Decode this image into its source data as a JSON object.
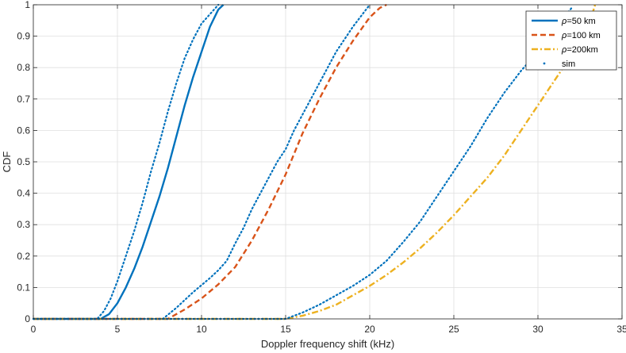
{
  "chart_data": {
    "type": "line",
    "title": "",
    "xlabel": "Doppler frequency shift (kHz)",
    "ylabel": "CDF",
    "xlim": [
      0,
      35
    ],
    "ylim": [
      0,
      1
    ],
    "xticks": [
      0,
      5,
      10,
      15,
      20,
      25,
      30,
      35
    ],
    "yticks": [
      0,
      0.1,
      0.2,
      0.3,
      0.4,
      0.5,
      0.6,
      0.7,
      0.8,
      0.9,
      1
    ],
    "x_tick_labels": [
      "0",
      "5",
      "10",
      "15",
      "20",
      "25",
      "30",
      "35"
    ],
    "y_tick_labels": [
      "0",
      "0.1",
      "0.2",
      "0.3",
      "0.4",
      "0.5",
      "0.6",
      "0.7",
      "0.8",
      "0.9",
      "1"
    ],
    "grid": true,
    "legend_position": "top-right",
    "series": [
      {
        "name_prefix": "ρ",
        "name_suffix": "=50 km",
        "style": "solid",
        "color": "#0072BD",
        "x": [
          0,
          4.0,
          4.5,
          5.0,
          5.5,
          6.0,
          6.5,
          7.0,
          7.5,
          8.0,
          8.5,
          9.0,
          9.5,
          10.0,
          10.5,
          11.0,
          11.3
        ],
        "y": [
          0,
          0,
          0.015,
          0.05,
          0.1,
          0.16,
          0.23,
          0.31,
          0.39,
          0.48,
          0.58,
          0.68,
          0.77,
          0.85,
          0.93,
          0.985,
          1.0
        ]
      },
      {
        "name_prefix": "ρ",
        "name_suffix": "=100 km",
        "style": "dashed",
        "color": "#D95319",
        "x": [
          0,
          8.0,
          9.0,
          10.0,
          11.0,
          12.0,
          13.0,
          14.0,
          15.0,
          16.0,
          17.0,
          18.0,
          19.0,
          20.0,
          20.6,
          21.0
        ],
        "y": [
          0,
          0,
          0.03,
          0.065,
          0.11,
          0.165,
          0.25,
          0.35,
          0.46,
          0.59,
          0.7,
          0.8,
          0.885,
          0.96,
          0.99,
          1.0
        ]
      },
      {
        "name_prefix": "ρ",
        "name_suffix": "=200km",
        "style": "dashdot",
        "color": "#EDB120",
        "x": [
          0,
          15.0,
          16.0,
          17.0,
          18.0,
          19.0,
          20.0,
          21.0,
          22.0,
          23.0,
          24.0,
          25.0,
          26.0,
          27.0,
          28.0,
          29.0,
          30.0,
          31.0,
          32.0,
          33.0,
          33.4
        ],
        "y": [
          0,
          0,
          0.01,
          0.025,
          0.045,
          0.075,
          0.105,
          0.14,
          0.18,
          0.225,
          0.275,
          0.33,
          0.39,
          0.45,
          0.52,
          0.6,
          0.68,
          0.76,
          0.84,
          0.93,
          1.0
        ]
      },
      {
        "name": "sim",
        "style": "dotted",
        "color": "#0072BD",
        "segments": [
          {
            "x": [
              0,
              3.8,
              4.2,
              4.6,
              5.0,
              5.5,
              6.0,
              6.5,
              7.0,
              7.5,
              8.0,
              8.5,
              9.0,
              9.5,
              10.0,
              10.5,
              11.0
            ],
            "y": [
              0,
              0,
              0.025,
              0.065,
              0.12,
              0.2,
              0.28,
              0.37,
              0.47,
              0.56,
              0.66,
              0.75,
              0.83,
              0.89,
              0.94,
              0.97,
              1.0
            ]
          },
          {
            "x": [
              0,
              7.7,
              8.5,
              9.5,
              10.5,
              11.0,
              11.5,
              12.0,
              12.5,
              13.0,
              13.5,
              14.0,
              14.5,
              15.0,
              15.5,
              16.0,
              16.5,
              17.0,
              17.5,
              18.0,
              18.5,
              19.0,
              19.5,
              20.0
            ],
            "y": [
              0,
              0,
              0.035,
              0.085,
              0.13,
              0.155,
              0.185,
              0.24,
              0.29,
              0.35,
              0.4,
              0.45,
              0.5,
              0.54,
              0.6,
              0.65,
              0.7,
              0.75,
              0.8,
              0.85,
              0.89,
              0.93,
              0.965,
              1.0
            ]
          },
          {
            "x": [
              0,
              15.0,
              16.0,
              17.0,
              18.0,
              19.0,
              20.0,
              21.0,
              22.0,
              23.0,
              24.0,
              25.0,
              26.0,
              27.0,
              28.0,
              29.0,
              30.0,
              31.0,
              32.0
            ],
            "y": [
              0,
              0,
              0.02,
              0.045,
              0.075,
              0.105,
              0.14,
              0.185,
              0.245,
              0.31,
              0.39,
              0.47,
              0.55,
              0.64,
              0.72,
              0.79,
              0.85,
              0.92,
              0.99
            ]
          }
        ]
      }
    ]
  }
}
